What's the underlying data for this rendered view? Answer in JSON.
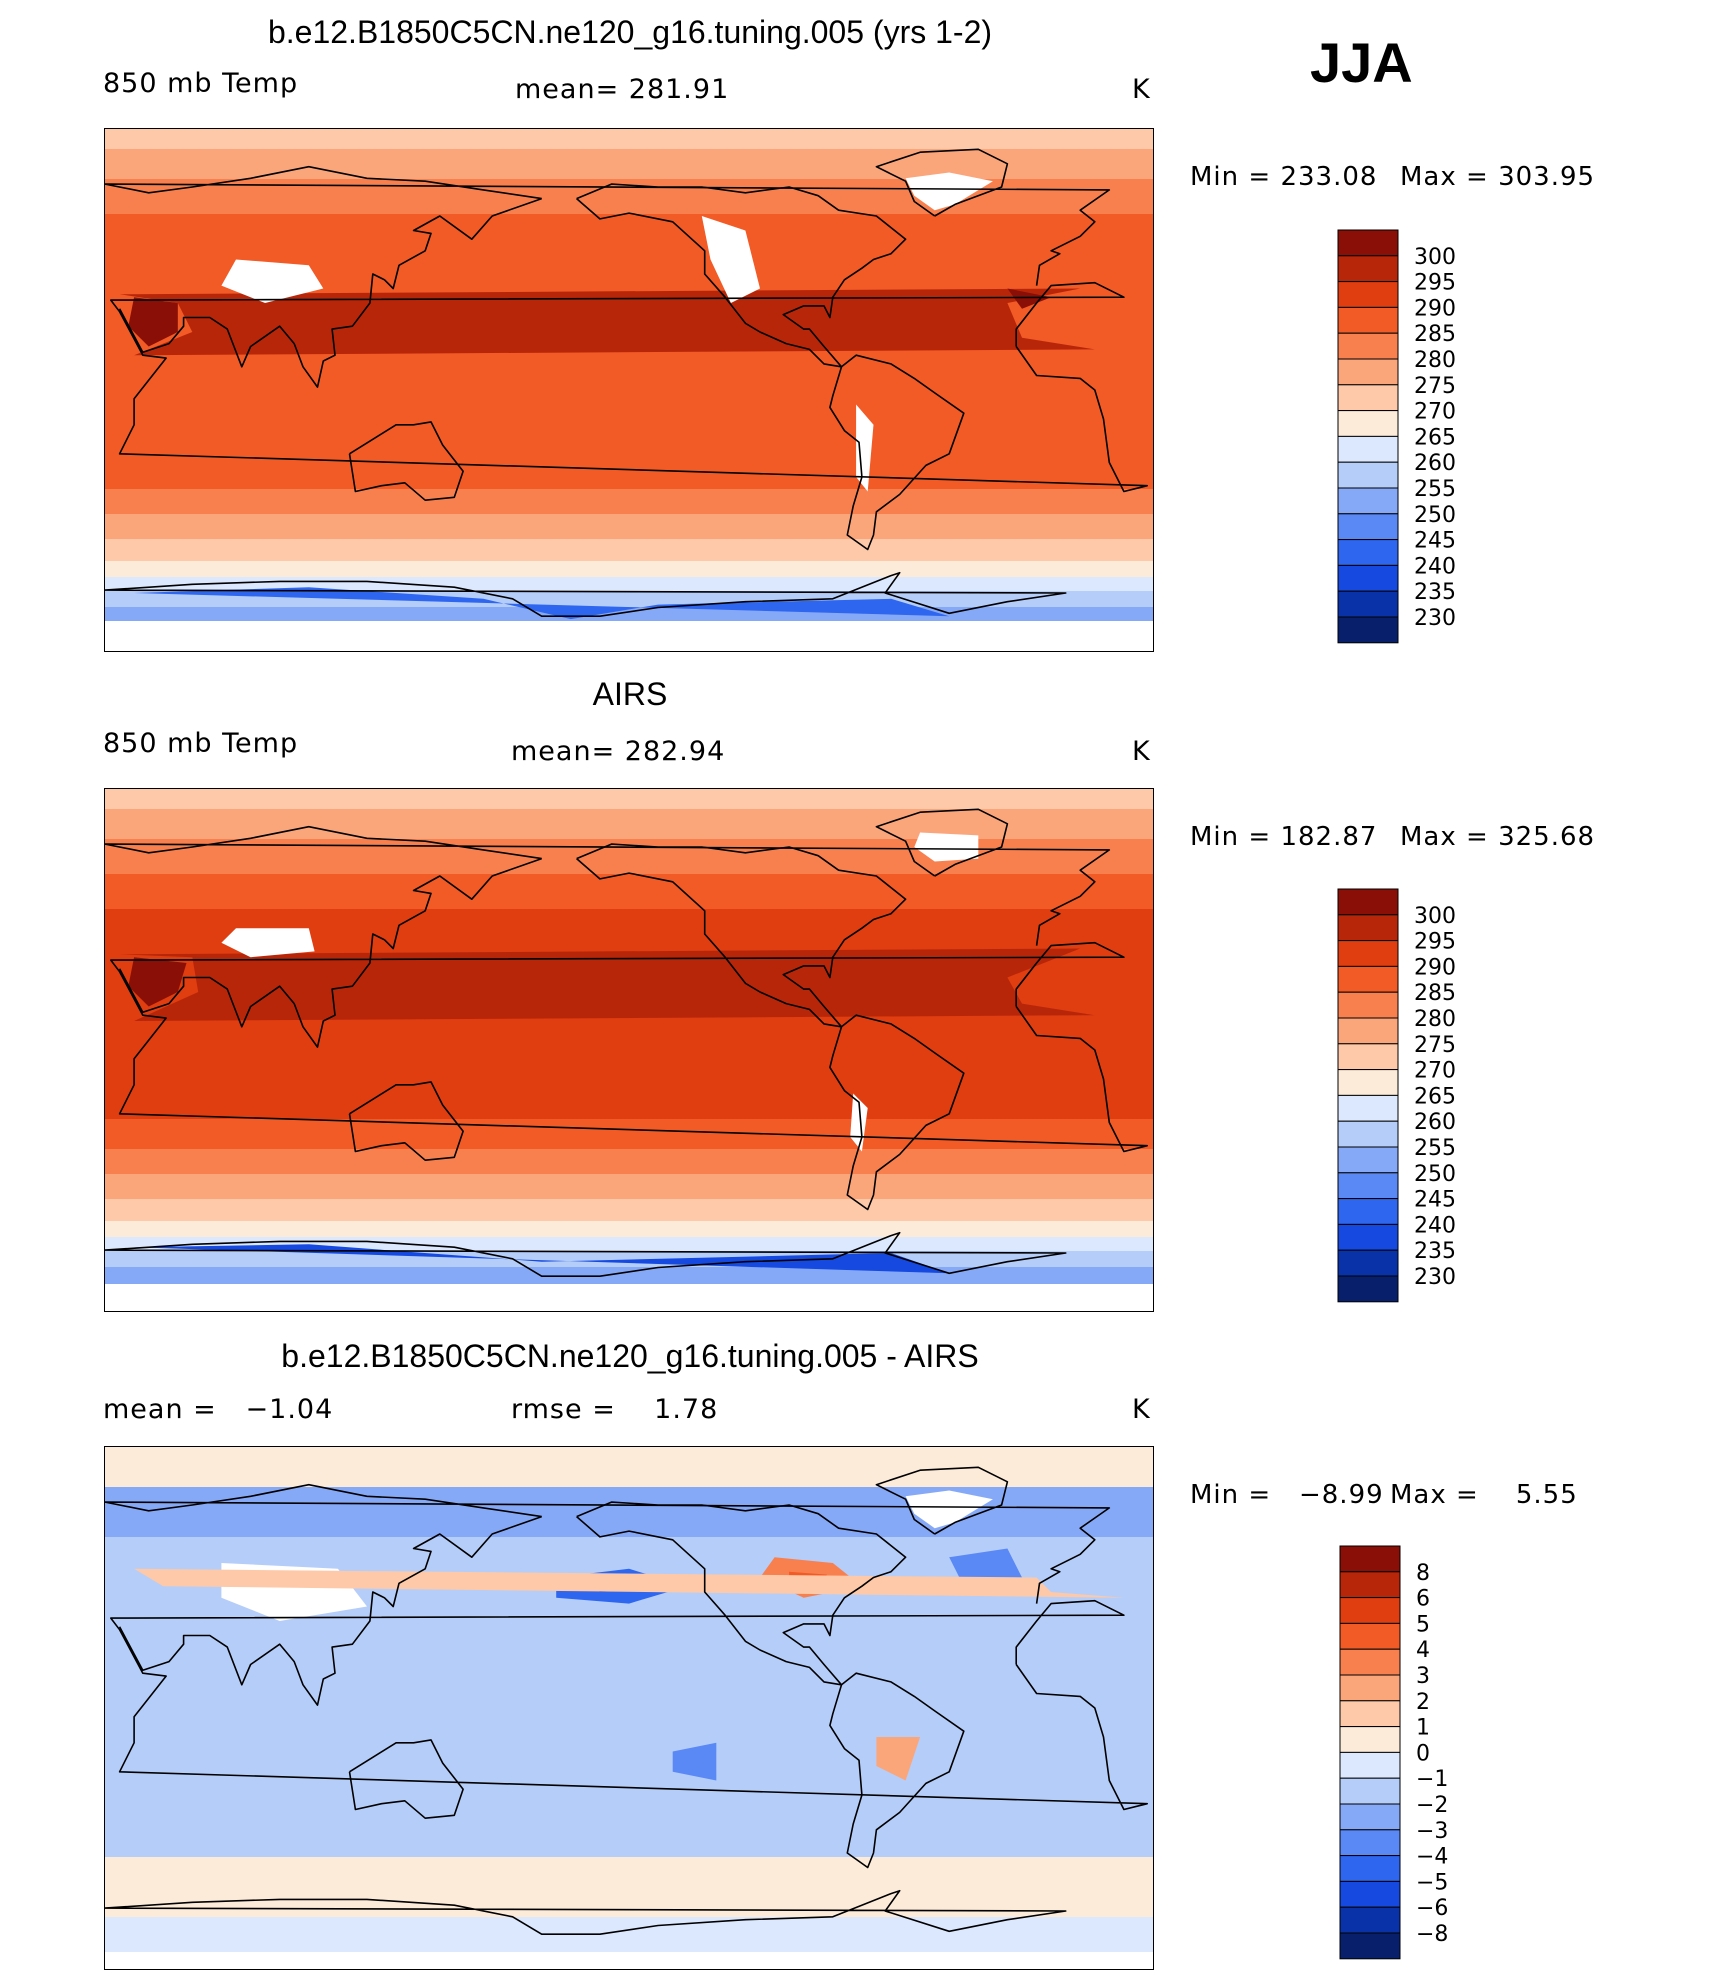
{
  "season": "JJA",
  "units": "K",
  "colors": {
    "temp": [
      "#08206b",
      "#0a32a8",
      "#1549e0",
      "#2f66f0",
      "#5a88f5",
      "#86a9f7",
      "#b5cdf9",
      "#dce8fd",
      "#fdebd9",
      "#fdc9a8",
      "#fba57b",
      "#f8804f",
      "#f25a26",
      "#e03e10",
      "#b8260a",
      "#8a0f06"
    ],
    "diff": [
      "#08206b",
      "#0a32a8",
      "#1549e0",
      "#2f66f0",
      "#5a88f5",
      "#86a9f7",
      "#b5cdf9",
      "#dce8fd",
      "#fdebd9",
      "#fdc9a8",
      "#fba57b",
      "#f8804f",
      "#f25a26",
      "#e03e10",
      "#b8260a",
      "#8a0f06"
    ]
  },
  "panels": [
    {
      "id": "model",
      "title": "b.e12.B1850C5CN.ne120_g16.tuning.005 (yrs 1-2)",
      "left_label": "850 mb Temp",
      "center_label": "mean= 281.91",
      "right_label": "K",
      "min_label": "Min = 233.08",
      "max_label": "Max = 303.95",
      "colorbar": [
        "300",
        "295",
        "290",
        "285",
        "280",
        "275",
        "270",
        "265",
        "260",
        "255",
        "250",
        "245",
        "240",
        "235",
        "230"
      ]
    },
    {
      "id": "obs",
      "title": "AIRS",
      "left_label": "850 mb Temp",
      "center_label": "mean= 282.94",
      "right_label": "K",
      "min_label": "Min = 182.87",
      "max_label": "Max = 325.68",
      "colorbar": [
        "300",
        "295",
        "290",
        "285",
        "280",
        "275",
        "270",
        "265",
        "260",
        "255",
        "250",
        "245",
        "240",
        "235",
        "230"
      ]
    },
    {
      "id": "diff",
      "title": "b.e12.B1850C5CN.ne120_g16.tuning.005 - AIRS",
      "left_label": "mean =   −1.04",
      "center_label": "rmse =    1.78",
      "right_label": "K",
      "min_label": "Min =   −8.99",
      "max_label": "Max =    5.55",
      "colorbar": [
        "8",
        "6",
        "5",
        "4",
        "3",
        "2",
        "1",
        "0",
        "−1",
        "−2",
        "−3",
        "−4",
        "−5",
        "−6",
        "−8"
      ]
    }
  ]
}
